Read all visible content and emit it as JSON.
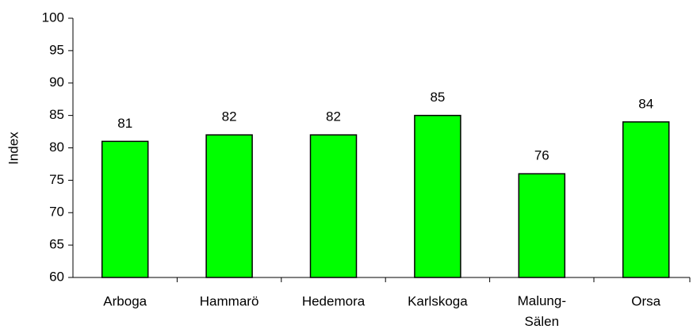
{
  "chart_data": {
    "type": "bar",
    "y_label": "Index",
    "categories": [
      "Arboga",
      "Hammarö",
      "Hedemora",
      "Karlskoga",
      "Malung-Sälen",
      "Orsa"
    ],
    "values": [
      81,
      82,
      82,
      85,
      76,
      84
    ],
    "color": "#00ff00",
    "ylim": [
      60,
      100
    ],
    "yticks": [
      60,
      65,
      70,
      75,
      80,
      85,
      90,
      95,
      100
    ],
    "grid": false
  }
}
